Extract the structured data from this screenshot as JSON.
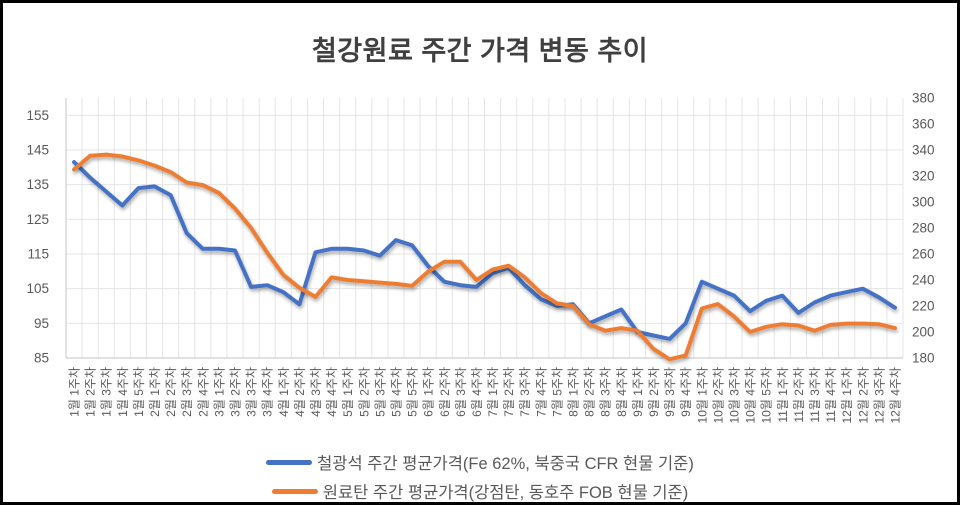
{
  "title": "철강원료 주간 가격 변동 추이",
  "colors": {
    "iron_ore_line": "#4472C4",
    "coking_coal_line": "#ED7D31",
    "gridline": "#E4E4E4",
    "axis_line": "#C6C6C6",
    "axis_text": "#595959",
    "title_text": "#404040",
    "frame_border": "#000000"
  },
  "chart_data": {
    "type": "line",
    "title": "철강원료 주간 가격 변동 추이",
    "grid": true,
    "legend_position": "bottom",
    "categories": [
      "1월 1주차",
      "1월 2주차",
      "1월 3주차",
      "1월 4주차",
      "1월 5주차",
      "2월 1주차",
      "2월 2주차",
      "2월 3주차",
      "2월 4주차",
      "3월 1주차",
      "3월 2주차",
      "3월 3주차",
      "3월 4주차",
      "4월 1주차",
      "4월 2주차",
      "4월 3주차",
      "4월 4주차",
      "5월 1주차",
      "5월 2주차",
      "5월 3주차",
      "5월 4주차",
      "5월 5주차",
      "6월 1주차",
      "6월 2주차",
      "6월 3주차",
      "6월 4주차",
      "7월 1주차",
      "7월 2주차",
      "7월 3주차",
      "7월 4주차",
      "7월 5주차",
      "8월 1주차",
      "8월 2주차",
      "8월 3주차",
      "8월 4주차",
      "9월 1주차",
      "9월 2주차",
      "9월 3주차",
      "9월 4주차",
      "10월 1주차",
      "10월 2주차",
      "10월 3주차",
      "10월 4주차",
      "10월 5주차",
      "11월 1주차",
      "11월 2주차",
      "11월 3주차",
      "11월 4주차",
      "12월 1주차",
      "12월 2주차",
      "12월 3주차",
      "12월 4주차"
    ],
    "series": [
      {
        "name": "철광석 주간 평균가격(Fe 62%, 북중국 CFR 현물 기준)",
        "axis": "left",
        "color": "#4472C4",
        "values": [
          141.5,
          137,
          133,
          129,
          134,
          134.5,
          132,
          121,
          116.5,
          116.5,
          116,
          105.5,
          106,
          104,
          100.5,
          115.5,
          116.5,
          116.5,
          116,
          114.5,
          119,
          117.5,
          111.5,
          107,
          106,
          105.5,
          109.5,
          111,
          106,
          102,
          100,
          100.5,
          95,
          97,
          99,
          92.5,
          91.5,
          90.5,
          95,
          107,
          105,
          103,
          98.5,
          101.5,
          103,
          98,
          101,
          103,
          104,
          105,
          102.5,
          99.5
        ]
      },
      {
        "name": "원료탄 주간 평균가격(강점탄, 동호주 FOB 현물 기준)",
        "axis": "right",
        "color": "#ED7D31",
        "values": [
          325,
          335.5,
          336.5,
          335,
          332,
          328,
          323,
          315,
          313,
          307,
          295,
          280,
          261,
          244,
          234,
          227,
          242,
          240,
          239,
          238,
          237,
          235.5,
          246.5,
          254,
          254,
          240,
          248,
          251,
          242,
          230,
          222,
          220,
          206,
          201,
          203,
          201,
          187,
          179,
          182,
          218,
          221.5,
          212,
          200,
          204,
          206,
          205,
          201,
          205.5,
          206.5,
          206.5,
          206,
          203
        ]
      }
    ],
    "y_axis_left": {
      "min": 85,
      "max": 160,
      "step": 10,
      "ticks": [
        155,
        145,
        135,
        125,
        115,
        105,
        95,
        85
      ]
    },
    "y_axis_right": {
      "min": 180,
      "max": 380,
      "step": 20,
      "ticks": [
        380,
        360,
        340,
        320,
        300,
        280,
        260,
        240,
        220,
        200,
        180
      ]
    }
  }
}
